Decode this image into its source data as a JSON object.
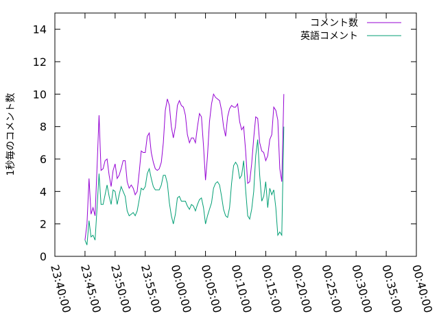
{
  "chart_data": {
    "type": "line",
    "title": "",
    "xlabel": "",
    "ylabel": "1秒毎のコメント数",
    "xlim": [
      "23:40:00",
      "00:40:00"
    ],
    "ylim": [
      0,
      15
    ],
    "x_ticks": [
      "23:40:00",
      "23:45:00",
      "23:50:00",
      "23:55:00",
      "00:00:00",
      "00:05:00",
      "00:10:00",
      "00:15:00",
      "00:20:00",
      "00:25:00",
      "00:30:00",
      "00:35:00",
      "00:40:00"
    ],
    "y_ticks": [
      0,
      2,
      4,
      6,
      8,
      10,
      12,
      14
    ],
    "grid": false,
    "legend_position": "top-right",
    "series": [
      {
        "name": "コメント数",
        "color": "#9400d3",
        "points": [
          [
            "23:45:00",
            1.0
          ],
          [
            "23:45:20",
            2.0
          ],
          [
            "23:45:40",
            4.8
          ],
          [
            "23:46:00",
            2.6
          ],
          [
            "23:46:20",
            3.0
          ],
          [
            "23:46:40",
            2.5
          ],
          [
            "23:47:00",
            5.5
          ],
          [
            "23:47:20",
            8.7
          ],
          [
            "23:47:40",
            5.3
          ],
          [
            "23:48:00",
            5.4
          ],
          [
            "23:48:20",
            5.9
          ],
          [
            "23:48:40",
            6.0
          ],
          [
            "23:49:00",
            5.0
          ],
          [
            "23:49:20",
            4.3
          ],
          [
            "23:49:40",
            5.3
          ],
          [
            "23:50:00",
            5.7
          ],
          [
            "23:50:20",
            4.8
          ],
          [
            "23:50:40",
            5.0
          ],
          [
            "23:51:00",
            5.4
          ],
          [
            "23:51:20",
            5.9
          ],
          [
            "23:51:40",
            5.9
          ],
          [
            "23:52:00",
            4.6
          ],
          [
            "23:52:20",
            4.2
          ],
          [
            "23:52:40",
            4.4
          ],
          [
            "23:53:00",
            4.2
          ],
          [
            "23:53:20",
            3.8
          ],
          [
            "23:53:40",
            4.0
          ],
          [
            "23:54:00",
            5.2
          ],
          [
            "23:54:20",
            6.5
          ],
          [
            "23:54:40",
            6.4
          ],
          [
            "23:55:00",
            6.4
          ],
          [
            "23:55:20",
            7.4
          ],
          [
            "23:55:40",
            7.6
          ],
          [
            "23:56:00",
            6.4
          ],
          [
            "23:56:20",
            5.8
          ],
          [
            "23:56:40",
            5.4
          ],
          [
            "23:57:00",
            5.3
          ],
          [
            "23:57:20",
            5.4
          ],
          [
            "23:57:40",
            5.8
          ],
          [
            "23:58:00",
            7.0
          ],
          [
            "23:58:20",
            9.0
          ],
          [
            "23:58:40",
            9.7
          ],
          [
            "23:59:00",
            9.3
          ],
          [
            "23:59:20",
            8.0
          ],
          [
            "23:59:40",
            7.3
          ],
          [
            "00:00:00",
            8.0
          ],
          [
            "00:00:20",
            9.3
          ],
          [
            "00:00:40",
            9.6
          ],
          [
            "00:01:00",
            9.3
          ],
          [
            "00:01:20",
            9.2
          ],
          [
            "00:01:40",
            8.7
          ],
          [
            "00:02:00",
            7.5
          ],
          [
            "00:02:20",
            7.0
          ],
          [
            "00:02:40",
            7.3
          ],
          [
            "00:03:00",
            7.3
          ],
          [
            "00:03:20",
            7.0
          ],
          [
            "00:03:40",
            8.0
          ],
          [
            "00:04:00",
            8.8
          ],
          [
            "00:04:20",
            8.6
          ],
          [
            "00:04:40",
            6.8
          ],
          [
            "00:05:00",
            4.7
          ],
          [
            "00:05:20",
            6.2
          ],
          [
            "00:05:40",
            8.3
          ],
          [
            "00:06:00",
            9.4
          ],
          [
            "00:06:20",
            10.0
          ],
          [
            "00:06:40",
            9.8
          ],
          [
            "00:07:00",
            9.7
          ],
          [
            "00:07:20",
            9.6
          ],
          [
            "00:07:40",
            9.0
          ],
          [
            "00:08:00",
            8.0
          ],
          [
            "00:08:20",
            7.4
          ],
          [
            "00:08:40",
            8.6
          ],
          [
            "00:09:00",
            9.1
          ],
          [
            "00:09:20",
            9.3
          ],
          [
            "00:09:40",
            9.2
          ],
          [
            "00:10:00",
            9.2
          ],
          [
            "00:10:20",
            9.4
          ],
          [
            "00:10:40",
            8.3
          ],
          [
            "00:11:00",
            7.8
          ],
          [
            "00:11:20",
            8.0
          ],
          [
            "00:11:40",
            6.5
          ],
          [
            "00:12:00",
            4.5
          ],
          [
            "00:12:20",
            4.6
          ],
          [
            "00:12:40",
            5.7
          ],
          [
            "00:13:00",
            7.3
          ],
          [
            "00:13:20",
            8.6
          ],
          [
            "00:13:40",
            8.5
          ],
          [
            "00:14:00",
            7.0
          ],
          [
            "00:14:20",
            6.5
          ],
          [
            "00:14:40",
            6.4
          ],
          [
            "00:15:00",
            5.9
          ],
          [
            "00:15:20",
            6.2
          ],
          [
            "00:15:40",
            7.2
          ],
          [
            "00:16:00",
            7.5
          ],
          [
            "00:16:20",
            9.2
          ],
          [
            "00:16:40",
            9.0
          ],
          [
            "00:17:00",
            8.4
          ],
          [
            "00:17:20",
            5.4
          ],
          [
            "00:17:40",
            4.6
          ],
          [
            "00:18:00",
            10.0
          ]
        ]
      },
      {
        "name": "英語コメント",
        "color": "#009e73",
        "points": [
          [
            "23:45:00",
            1.0
          ],
          [
            "23:45:20",
            0.7
          ],
          [
            "23:45:40",
            2.2
          ],
          [
            "23:46:00",
            1.2
          ],
          [
            "23:46:20",
            1.3
          ],
          [
            "23:46:40",
            1.0
          ],
          [
            "23:47:00",
            3.0
          ],
          [
            "23:47:20",
            5.1
          ],
          [
            "23:47:40",
            3.2
          ],
          [
            "23:48:00",
            3.2
          ],
          [
            "23:48:20",
            3.8
          ],
          [
            "23:48:40",
            4.4
          ],
          [
            "23:49:00",
            3.7
          ],
          [
            "23:49:20",
            3.2
          ],
          [
            "23:49:40",
            4.1
          ],
          [
            "23:50:00",
            4.0
          ],
          [
            "23:50:20",
            3.2
          ],
          [
            "23:50:40",
            3.8
          ],
          [
            "23:51:00",
            4.3
          ],
          [
            "23:51:20",
            4.0
          ],
          [
            "23:51:40",
            3.7
          ],
          [
            "23:52:00",
            2.8
          ],
          [
            "23:52:20",
            2.5
          ],
          [
            "23:52:40",
            2.6
          ],
          [
            "23:53:00",
            2.7
          ],
          [
            "23:53:20",
            2.5
          ],
          [
            "23:53:40",
            2.8
          ],
          [
            "23:54:00",
            3.5
          ],
          [
            "23:54:20",
            4.2
          ],
          [
            "23:54:40",
            4.1
          ],
          [
            "23:55:00",
            4.3
          ],
          [
            "23:55:20",
            5.1
          ],
          [
            "23:55:40",
            5.4
          ],
          [
            "23:56:00",
            4.8
          ],
          [
            "23:56:20",
            4.3
          ],
          [
            "23:56:40",
            4.1
          ],
          [
            "23:57:00",
            4.1
          ],
          [
            "23:57:20",
            4.1
          ],
          [
            "23:57:40",
            4.4
          ],
          [
            "23:58:00",
            5.0
          ],
          [
            "23:58:20",
            5.0
          ],
          [
            "23:58:40",
            4.5
          ],
          [
            "23:59:00",
            3.3
          ],
          [
            "23:59:20",
            2.5
          ],
          [
            "23:59:40",
            2.0
          ],
          [
            "00:00:00",
            2.6
          ],
          [
            "00:00:20",
            3.6
          ],
          [
            "00:00:40",
            3.7
          ],
          [
            "00:01:00",
            3.4
          ],
          [
            "00:01:20",
            3.4
          ],
          [
            "00:01:40",
            3.4
          ],
          [
            "00:02:00",
            3.1
          ],
          [
            "00:02:20",
            2.9
          ],
          [
            "00:02:40",
            3.2
          ],
          [
            "00:03:00",
            3.1
          ],
          [
            "00:03:20",
            2.8
          ],
          [
            "00:03:40",
            3.2
          ],
          [
            "00:04:00",
            3.5
          ],
          [
            "00:04:20",
            3.6
          ],
          [
            "00:04:40",
            3.0
          ],
          [
            "00:05:00",
            2.0
          ],
          [
            "00:05:20",
            2.5
          ],
          [
            "00:05:40",
            2.9
          ],
          [
            "00:06:00",
            3.3
          ],
          [
            "00:06:20",
            4.2
          ],
          [
            "00:06:40",
            4.5
          ],
          [
            "00:07:00",
            4.6
          ],
          [
            "00:07:20",
            4.4
          ],
          [
            "00:07:40",
            3.7
          ],
          [
            "00:08:00",
            2.9
          ],
          [
            "00:08:20",
            2.5
          ],
          [
            "00:08:40",
            2.4
          ],
          [
            "00:09:00",
            3.0
          ],
          [
            "00:09:20",
            4.5
          ],
          [
            "00:09:40",
            5.6
          ],
          [
            "00:10:00",
            5.8
          ],
          [
            "00:10:20",
            5.6
          ],
          [
            "00:10:40",
            4.8
          ],
          [
            "00:11:00",
            5.0
          ],
          [
            "00:11:20",
            5.9
          ],
          [
            "00:11:40",
            4.1
          ],
          [
            "00:12:00",
            2.5
          ],
          [
            "00:12:20",
            2.3
          ],
          [
            "00:12:40",
            2.9
          ],
          [
            "00:13:00",
            4.0
          ],
          [
            "00:13:20",
            6.2
          ],
          [
            "00:13:40",
            7.2
          ],
          [
            "00:14:00",
            5.0
          ],
          [
            "00:14:20",
            3.4
          ],
          [
            "00:14:40",
            3.7
          ],
          [
            "00:15:00",
            4.6
          ],
          [
            "00:15:20",
            3.0
          ],
          [
            "00:15:40",
            4.2
          ],
          [
            "00:16:00",
            3.8
          ],
          [
            "00:16:20",
            4.1
          ],
          [
            "00:16:40",
            3.0
          ],
          [
            "00:17:00",
            1.3
          ],
          [
            "00:17:20",
            1.5
          ],
          [
            "00:17:40",
            1.3
          ],
          [
            "00:18:00",
            8.0
          ]
        ]
      }
    ]
  }
}
